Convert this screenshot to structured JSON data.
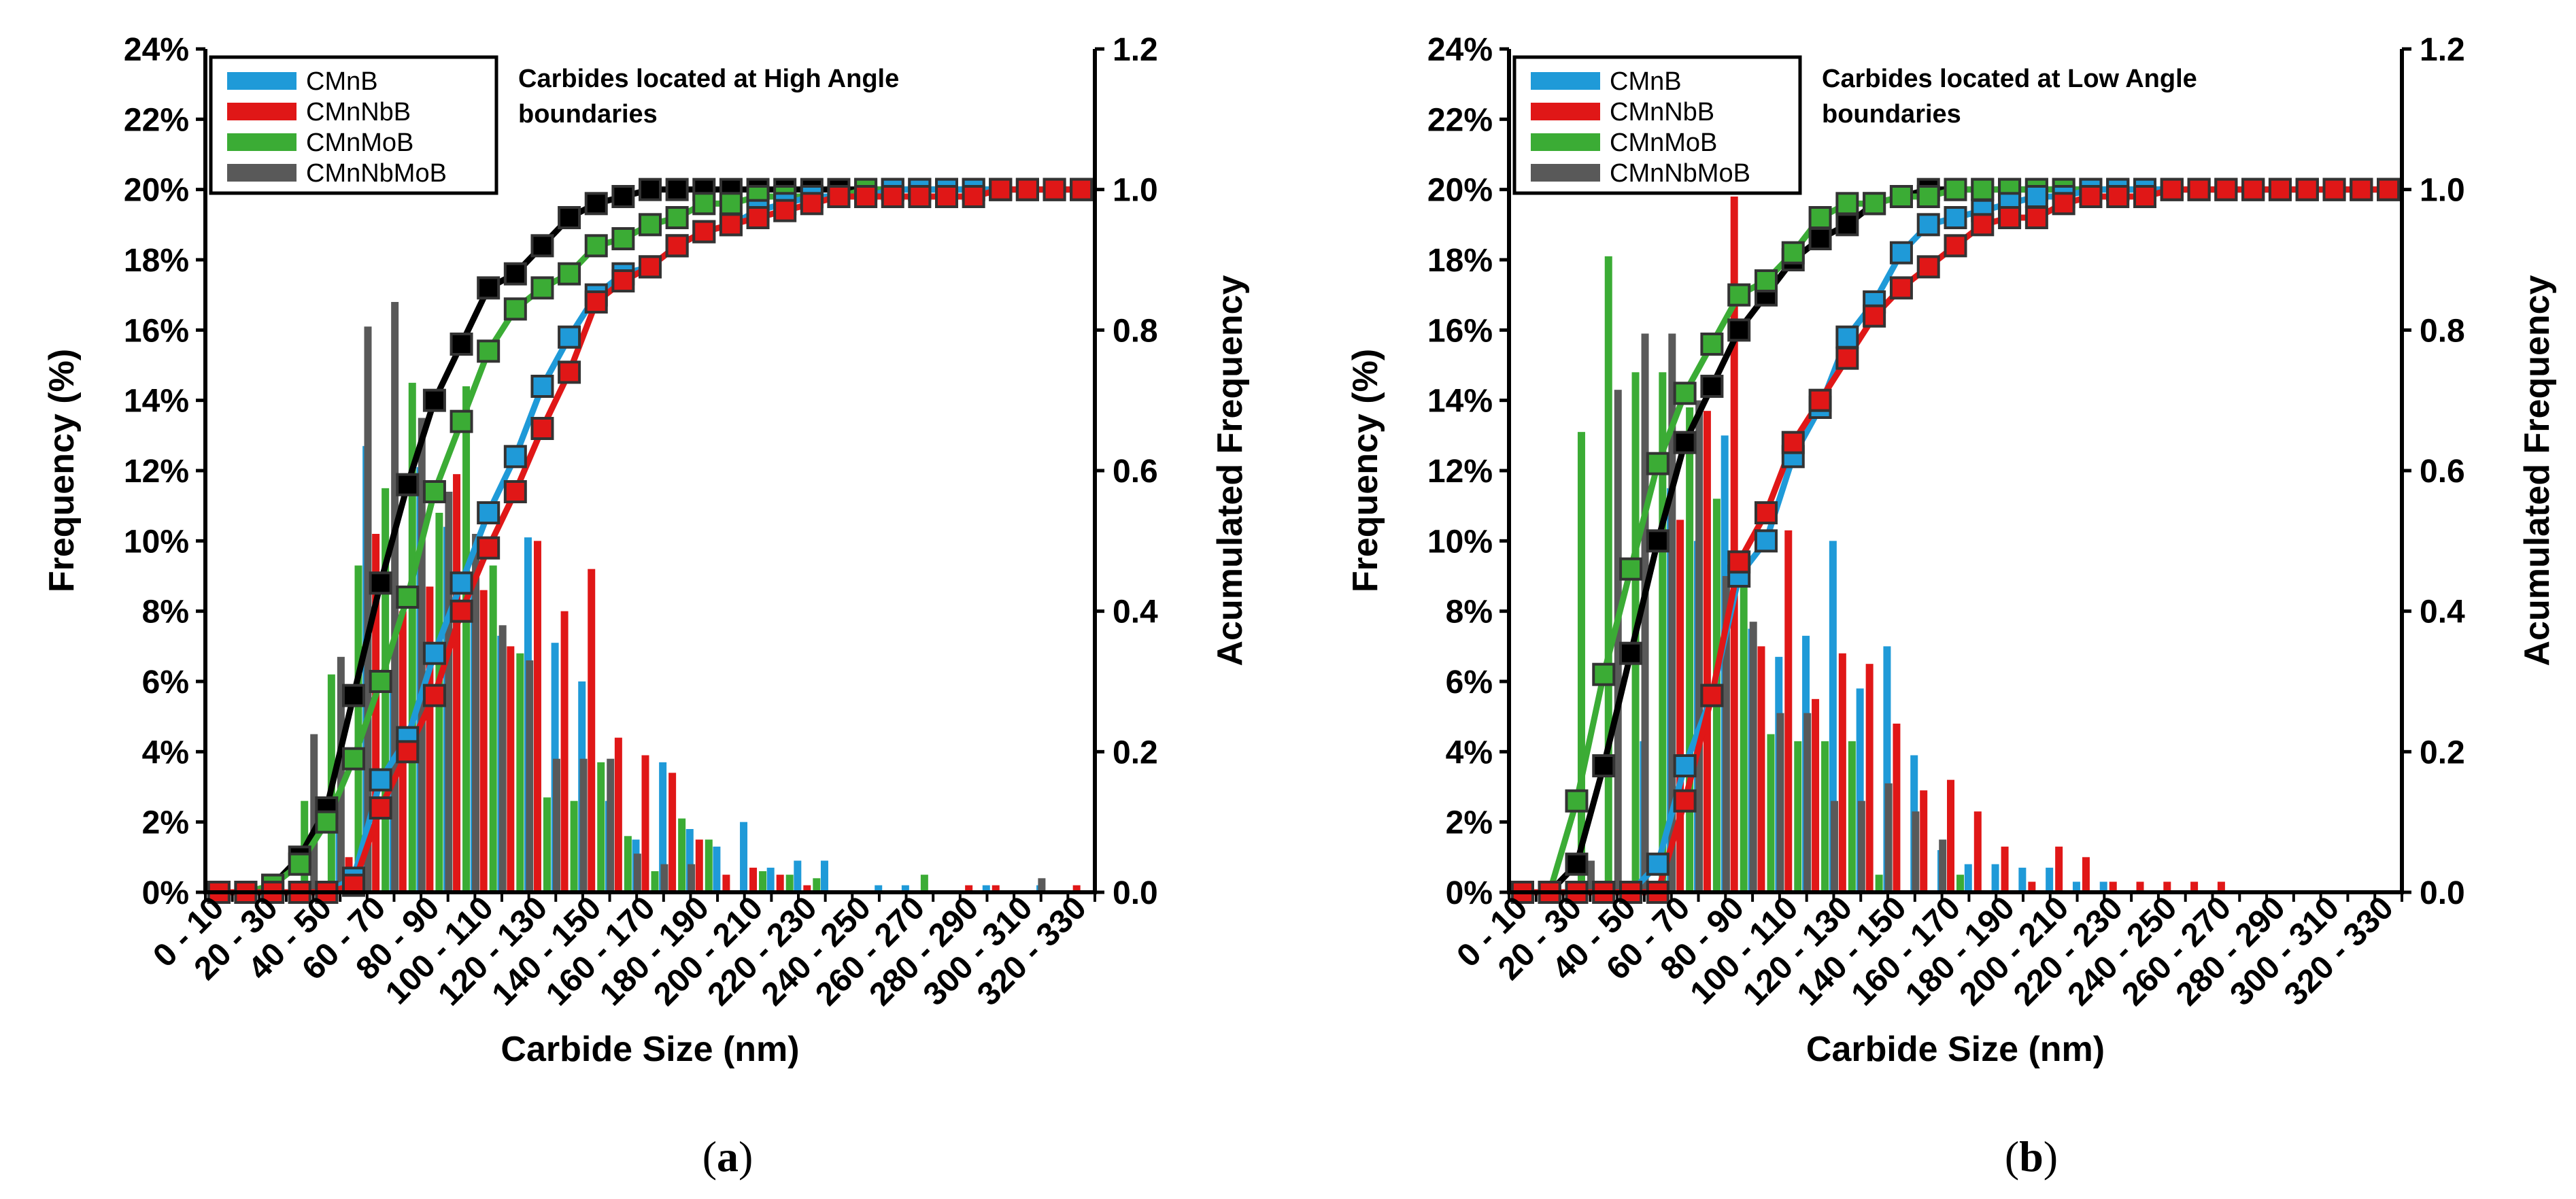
{
  "colors": {
    "CMnB": "#1f9ad8",
    "CMnNbB": "#e01717",
    "CMnMoB": "#3bac35",
    "CMnNbMoB": "#595959",
    "marker_fill_CMnNbMoB": "#000000"
  },
  "chart_data": [
    {
      "type": "bar",
      "panel_label": "a",
      "annotation": [
        "Carbides located at High Angle",
        "boundaries"
      ],
      "xlabel": "Carbide Size (nm)",
      "ylabel": "Frequency (%)",
      "y2label": "Acumulated Frequency",
      "ylim": [
        0,
        24
      ],
      "y_ticks": [
        "0%",
        "2%",
        "4%",
        "6%",
        "8%",
        "10%",
        "12%",
        "14%",
        "16%",
        "18%",
        "20%",
        "22%",
        "24%"
      ],
      "y2lim": [
        0,
        1.2
      ],
      "y2_ticks": [
        "0.0",
        "0.2",
        "0.4",
        "0.6",
        "0.8",
        "1.0",
        "1.2"
      ],
      "categories": [
        "0 - 10",
        "10 - 20",
        "20 - 30",
        "30 - 40",
        "40 - 50",
        "50 - 60",
        "60 - 70",
        "70 - 80",
        "80 - 90",
        "90 - 100",
        "100 - 110",
        "110 - 120",
        "120 - 130",
        "130 - 140",
        "140 - 150",
        "150 - 160",
        "160 - 170",
        "170 - 180",
        "180 - 190",
        "190 - 200",
        "200 - 210",
        "210 - 220",
        "220 - 230",
        "230 - 240",
        "240 - 250",
        "250 - 260",
        "260 - 270",
        "270 - 280",
        "280 - 290",
        "290 - 300",
        "300 - 310",
        "310 - 320",
        "320 - 330"
      ],
      "tick_labels": [
        "0 - 10",
        "20 - 30",
        "40 - 50",
        "60 - 70",
        "80 - 90",
        "100 - 110",
        "120 - 130",
        "140 - 150",
        "160 - 170",
        "180 - 190",
        "200 - 210",
        "220 - 230",
        "240 - 250",
        "260 - 270",
        "280 - 290",
        "300 - 310",
        "320 - 330"
      ],
      "series": [
        {
          "name": "CMnB",
          "values": [
            0,
            0,
            0,
            0,
            0,
            2.2,
            12.7,
            6.3,
            12.1,
            10.4,
            8.9,
            7.3,
            10.1,
            7.1,
            6.0,
            2.6,
            1.5,
            3.7,
            1.8,
            1.3,
            2.0,
            0.7,
            0.9,
            0.9,
            0,
            0.2,
            0.2,
            0,
            0,
            0.2,
            0,
            0.2,
            0
          ],
          "cumulative": [
            0,
            0,
            0,
            0,
            0,
            0.02,
            0.16,
            0.22,
            0.34,
            0.44,
            0.54,
            0.62,
            0.72,
            0.79,
            0.85,
            0.88,
            0.89,
            0.92,
            0.94,
            0.95,
            0.97,
            0.98,
            0.99,
            0.99,
            0.99,
            1.0,
            1.0,
            1.0,
            1.0,
            1.0,
            1.0,
            1.0,
            1.0
          ]
        },
        {
          "name": "CMnNbB",
          "values": [
            0,
            0,
            0,
            0,
            0,
            1.0,
            10.2,
            8.0,
            8.7,
            11.9,
            8.6,
            7.0,
            10.0,
            8.0,
            9.2,
            4.4,
            3.9,
            3.4,
            1.5,
            0.5,
            0.7,
            0.5,
            0.2,
            0,
            0,
            0,
            0,
            0,
            0.2,
            0.2,
            0,
            0,
            0.2
          ],
          "cumulative": [
            0,
            0,
            0,
            0,
            0,
            0.01,
            0.12,
            0.2,
            0.28,
            0.4,
            0.49,
            0.57,
            0.66,
            0.74,
            0.84,
            0.87,
            0.89,
            0.92,
            0.94,
            0.95,
            0.96,
            0.97,
            0.98,
            0.99,
            0.99,
            0.99,
            0.99,
            0.99,
            0.99,
            1.0,
            1.0,
            1.0,
            1.0
          ]
        },
        {
          "name": "CMnMoB",
          "values": [
            0,
            0,
            0.5,
            2.6,
            6.2,
            9.3,
            11.5,
            14.5,
            10.8,
            14.4,
            9.3,
            6.8,
            2.7,
            2.6,
            3.7,
            1.6,
            0.6,
            2.1,
            1.5,
            0,
            0.6,
            0.5,
            0.4,
            0,
            0,
            0,
            0.5,
            0,
            0,
            0,
            0,
            0,
            0
          ],
          "cumulative": [
            0,
            0,
            0.01,
            0.04,
            0.1,
            0.19,
            0.3,
            0.42,
            0.57,
            0.67,
            0.77,
            0.83,
            0.86,
            0.88,
            0.92,
            0.93,
            0.95,
            0.96,
            0.98,
            0.98,
            0.99,
            0.99,
            0.99,
            0.99,
            1.0,
            1.0,
            1.0,
            1.0,
            1.0,
            1.0,
            1.0,
            1.0,
            1.0
          ]
        },
        {
          "name": "CMnNbMoB",
          "values": [
            0,
            0,
            0,
            4.5,
            6.7,
            16.1,
            16.8,
            13.5,
            11.4,
            10.2,
            7.6,
            6.6,
            3.8,
            3.8,
            3.8,
            1.1,
            0.8,
            0.8,
            0,
            0,
            0,
            0,
            0,
            0,
            0,
            0,
            0,
            0,
            0,
            0,
            0.4,
            0,
            0
          ],
          "cumulative": [
            0,
            0,
            0.01,
            0.05,
            0.12,
            0.28,
            0.44,
            0.58,
            0.7,
            0.78,
            0.86,
            0.88,
            0.92,
            0.96,
            0.98,
            0.99,
            1.0,
            1.0,
            1.0,
            1.0,
            1.0,
            1.0,
            1.0,
            1.0,
            1.0,
            1.0,
            1.0,
            1.0,
            1.0,
            1.0,
            1.0,
            1.0,
            1.0
          ]
        }
      ]
    },
    {
      "type": "bar",
      "panel_label": "b",
      "annotation": [
        "Carbides located at Low Angle",
        "boundaries"
      ],
      "xlabel": "Carbide Size (nm)",
      "ylabel": "Frequency (%)",
      "y2label": "Acumulated Frequency",
      "ylim": [
        0,
        24
      ],
      "y_ticks": [
        "0%",
        "2%",
        "4%",
        "6%",
        "8%",
        "10%",
        "12%",
        "14%",
        "16%",
        "18%",
        "20%",
        "22%",
        "24%"
      ],
      "y2lim": [
        0,
        1.2
      ],
      "y2_ticks": [
        "0.0",
        "0.2",
        "0.4",
        "0.6",
        "0.8",
        "1.0",
        "1.2"
      ],
      "categories": [
        "0 - 10",
        "10 - 20",
        "20 - 30",
        "30 - 40",
        "40 - 50",
        "50 - 60",
        "60 - 70",
        "70 - 80",
        "80 - 90",
        "90 - 100",
        "100 - 110",
        "110 - 120",
        "120 - 130",
        "130 - 140",
        "140 - 150",
        "150 - 160",
        "160 - 170",
        "170 - 180",
        "180 - 190",
        "190 - 200",
        "200 - 210",
        "210 - 220",
        "220 - 230",
        "230 - 240",
        "240 - 250",
        "250 - 260",
        "260 - 270",
        "270 - 280",
        "280 - 290",
        "290 - 300",
        "300 - 310",
        "310 - 320",
        "320 - 330"
      ],
      "tick_labels": [
        "0 - 10",
        "20 - 30",
        "40 - 50",
        "60 - 70",
        "80 - 90",
        "100 - 110",
        "120 - 130",
        "140 - 150",
        "160 - 170",
        "180 - 190",
        "200 - 210",
        "220 - 230",
        "240 - 250",
        "260 - 270",
        "280 - 290",
        "300 - 310",
        "320 - 330"
      ],
      "series": [
        {
          "name": "CMnB",
          "values": [
            0,
            0,
            0,
            0,
            0,
            4.3,
            11.5,
            10.0,
            13.0,
            7.5,
            6.7,
            7.3,
            10.0,
            5.8,
            7.0,
            3.9,
            1.2,
            0.8,
            0.8,
            0.7,
            0.7,
            0.3,
            0.3,
            0,
            0,
            0,
            0,
            0,
            0,
            0,
            0,
            0,
            0
          ],
          "cumulative": [
            0,
            0,
            0,
            0,
            0,
            0.04,
            0.18,
            0.28,
            0.45,
            0.5,
            0.62,
            0.69,
            0.79,
            0.84,
            0.91,
            0.95,
            0.96,
            0.97,
            0.98,
            0.99,
            0.99,
            1.0,
            1.0,
            1.0,
            1.0,
            1.0,
            1.0,
            1.0,
            1.0,
            1.0,
            1.0,
            1.0,
            1.0
          ]
        },
        {
          "name": "CMnNbB",
          "values": [
            0,
            0,
            0,
            0,
            0,
            0,
            10.6,
            13.7,
            19.8,
            7.0,
            10.3,
            5.5,
            6.8,
            6.5,
            4.8,
            2.9,
            3.2,
            2.3,
            1.3,
            0.3,
            1.3,
            1.0,
            0.3,
            0.3,
            0.3,
            0.3,
            0.3,
            0,
            0,
            0,
            0,
            0,
            0
          ],
          "cumulative": [
            0,
            0,
            0,
            0,
            0,
            0,
            0.13,
            0.28,
            0.47,
            0.54,
            0.64,
            0.7,
            0.76,
            0.82,
            0.86,
            0.89,
            0.92,
            0.95,
            0.96,
            0.96,
            0.98,
            0.99,
            0.99,
            0.99,
            1.0,
            1.0,
            1.0,
            1.0,
            1.0,
            1.0,
            1.0,
            1.0,
            1.0
          ]
        },
        {
          "name": "CMnMoB",
          "values": [
            0,
            0,
            13.1,
            18.1,
            14.8,
            14.8,
            13.8,
            11.2,
            9.6,
            4.5,
            4.3,
            4.3,
            4.3,
            0.5,
            0,
            0,
            0.5,
            0,
            0,
            0,
            0,
            0,
            0,
            0,
            0,
            0,
            0,
            0,
            0,
            0,
            0,
            0,
            0
          ],
          "cumulative": [
            0,
            0,
            0.13,
            0.31,
            0.46,
            0.61,
            0.71,
            0.78,
            0.85,
            0.87,
            0.91,
            0.96,
            0.98,
            0.98,
            0.99,
            0.99,
            1.0,
            1.0,
            1.0,
            1.0,
            1.0,
            1.0,
            1.0,
            1.0,
            1.0,
            1.0,
            1.0,
            1.0,
            1.0,
            1.0,
            1.0,
            1.0,
            1.0
          ]
        },
        {
          "name": "CMnNbMoB",
          "values": [
            0,
            0,
            0.9,
            14.3,
            15.9,
            15.9,
            14.0,
            9.0,
            7.7,
            5.1,
            5.1,
            2.6,
            2.6,
            3.1,
            2.3,
            1.5,
            0,
            0,
            0,
            0,
            0,
            0,
            0,
            0,
            0,
            0,
            0,
            0,
            0,
            0,
            0,
            0,
            0
          ],
          "cumulative": [
            0,
            0,
            0.04,
            0.18,
            0.34,
            0.5,
            0.64,
            0.72,
            0.8,
            0.85,
            0.9,
            0.93,
            0.95,
            0.98,
            0.99,
            1.0,
            1.0,
            1.0,
            1.0,
            1.0,
            1.0,
            1.0,
            1.0,
            1.0,
            1.0,
            1.0,
            1.0,
            1.0,
            1.0,
            1.0,
            1.0,
            1.0,
            1.0
          ]
        }
      ]
    }
  ]
}
